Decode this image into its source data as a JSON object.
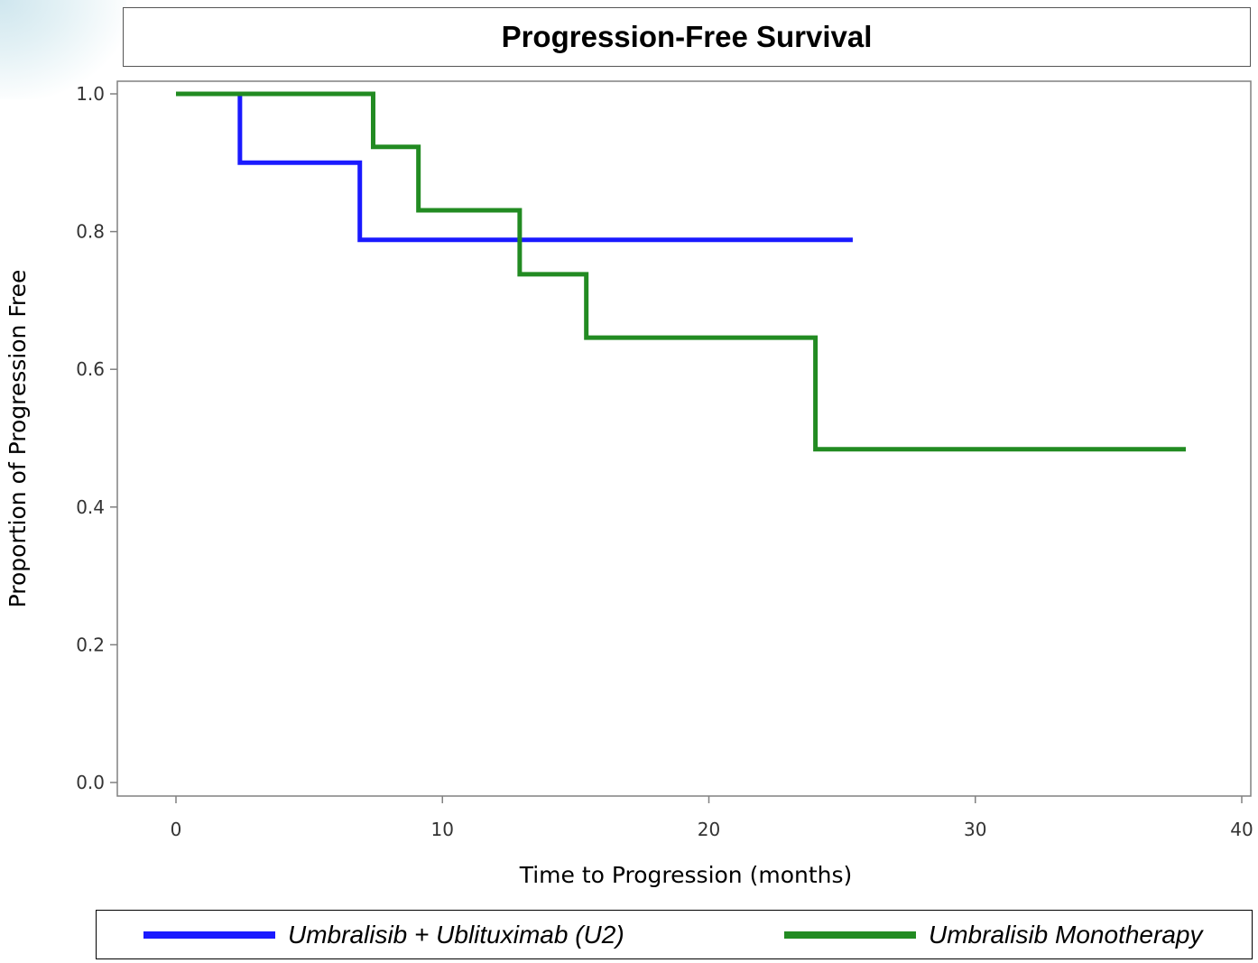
{
  "title": "Progression-Free Survival",
  "chart_data": {
    "type": "line",
    "step": true,
    "title": "Progression-Free Survival",
    "xlabel": "Time to Progression (months)",
    "ylabel": "Proportion of Progression Free",
    "xlim": [
      0,
      40
    ],
    "ylim": [
      0.0,
      1.0
    ],
    "xticks": [
      "0",
      "10",
      "20",
      "30",
      "40"
    ],
    "yticks": [
      "0.0",
      "0.2",
      "0.4",
      "0.6",
      "0.8",
      "1.0"
    ],
    "grid": false,
    "legend_placement": "bottom",
    "series": [
      {
        "name": "Umbralisib + Ublituximab (U2)",
        "color": "#1a1aff",
        "x": [
          0,
          2.4,
          6.9,
          25.4
        ],
        "y": [
          1.0,
          0.9,
          0.788,
          0.788
        ]
      },
      {
        "name": "Umbralisib Monotherapy",
        "color": "#228b22",
        "x": [
          0,
          7.4,
          9.1,
          12.9,
          15.4,
          24.0,
          37.9
        ],
        "y": [
          1.0,
          0.923,
          0.831,
          0.738,
          0.646,
          0.484,
          0.484
        ]
      }
    ]
  }
}
